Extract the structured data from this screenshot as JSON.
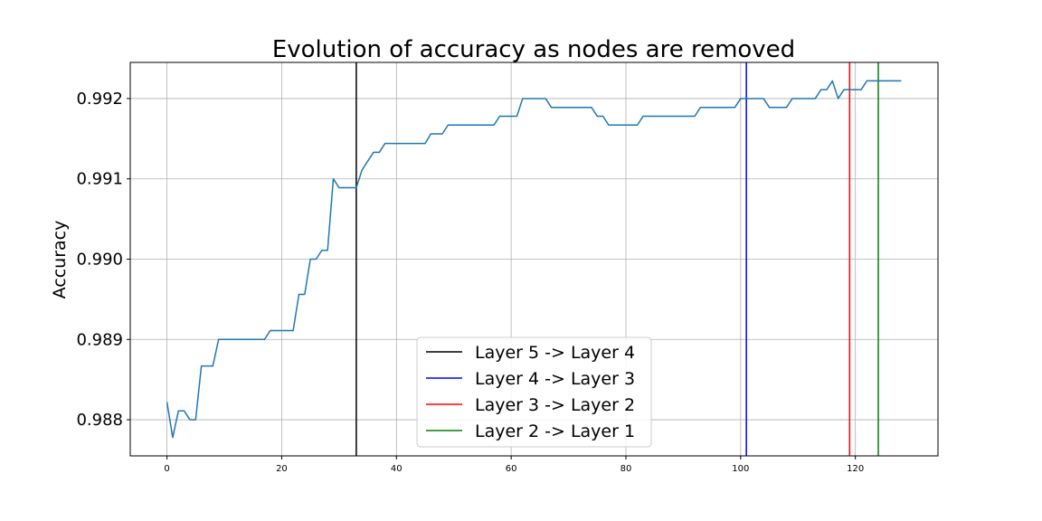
{
  "chart_data": {
    "type": "line",
    "title": "Evolution of accuracy as nodes are removed",
    "xlabel": "",
    "ylabel": "Accuracy",
    "xlim": [
      -6.4,
      134.4
    ],
    "ylim": [
      0.98755,
      0.99245
    ],
    "xticks": [
      0,
      20,
      40,
      60,
      80,
      100,
      120
    ],
    "yticks": [
      0.988,
      0.989,
      0.99,
      0.991,
      0.992
    ],
    "ytick_labels": [
      "0.988",
      "0.989",
      "0.990",
      "0.991",
      "0.992"
    ],
    "grid": true,
    "line_color": "#1f77b4",
    "series": [
      {
        "x": [
          0,
          1,
          2,
          3,
          4,
          5,
          6,
          7,
          8,
          9,
          17,
          18,
          22,
          23,
          24,
          25,
          26,
          27,
          28,
          29,
          30,
          33,
          34,
          36,
          37,
          38,
          45,
          46,
          48,
          49,
          57,
          58,
          61,
          62,
          66,
          67,
          74,
          75,
          76,
          77,
          82,
          83,
          92,
          93,
          99,
          100,
          104,
          105,
          108,
          109,
          113,
          114,
          115,
          116,
          117,
          118,
          121,
          122,
          128
        ],
        "y": [
          0.98822,
          0.98778,
          0.98811,
          0.98811,
          0.988,
          0.988,
          0.98867,
          0.98867,
          0.98867,
          0.989,
          0.989,
          0.98911,
          0.98911,
          0.98956,
          0.98956,
          0.99,
          0.99,
          0.99011,
          0.99011,
          0.991,
          0.99089,
          0.99089,
          0.99111,
          0.99133,
          0.99133,
          0.99144,
          0.99144,
          0.99156,
          0.99156,
          0.99167,
          0.99167,
          0.99178,
          0.99178,
          0.992,
          0.992,
          0.99189,
          0.99189,
          0.99178,
          0.99178,
          0.99167,
          0.99167,
          0.99178,
          0.99178,
          0.99189,
          0.99189,
          0.992,
          0.992,
          0.99189,
          0.99189,
          0.992,
          0.992,
          0.99211,
          0.99211,
          0.99222,
          0.992,
          0.99211,
          0.99211,
          0.99222,
          0.99222
        ]
      }
    ],
    "vlines": [
      {
        "x": 33,
        "color": "#000000",
        "label": "Layer 5 -> Layer 4"
      },
      {
        "x": 101,
        "color": "#0000ff",
        "label": "Layer 4 -> Layer 3"
      },
      {
        "x": 119,
        "color": "#ff0000",
        "label": "Layer 3 -> Layer 2"
      },
      {
        "x": 124,
        "color": "#008000",
        "label": "Layer 2 -> Layer 1"
      }
    ],
    "legend_position": "lower-center"
  }
}
